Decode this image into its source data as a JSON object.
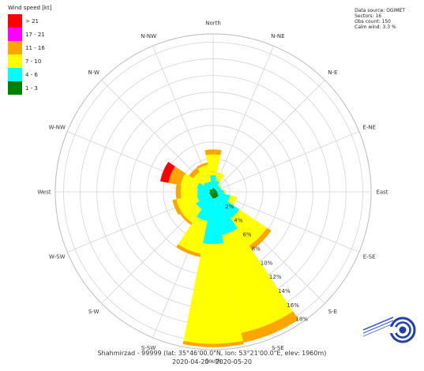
{
  "legend": {
    "title": "Wind speed [kt]",
    "items": [
      {
        "label": "> 21",
        "color": "#ff0000"
      },
      {
        "label": "17 - 21",
        "color": "#ff00ff"
      },
      {
        "label": "11 - 16",
        "color": "#ffa500"
      },
      {
        "label": "7 - 10",
        "color": "#ffff00"
      },
      {
        "label": "4 - 6",
        "color": "#00ffff"
      },
      {
        "label": "1 - 3",
        "color": "#008000"
      }
    ]
  },
  "info": {
    "lines": [
      "Data source: OGIMET",
      "Sectors: 16",
      "Obs count: 150",
      "Calm wind: 3.3 %"
    ]
  },
  "footer": {
    "station": "Shahmirzad - 99999 (lat: 35°46'00.0\"N, lon: 53°21'00.0\"E, elev: 1960m)",
    "period": "2020-04-20 - 2020-05-20"
  },
  "chart_data": {
    "type": "wind-rose",
    "directions": [
      "North",
      "N-NE",
      "N-E",
      "E-NE",
      "East",
      "E-SE",
      "S-E",
      "S-SE",
      "South",
      "S-SW",
      "S-W",
      "W-SW",
      "West",
      "W-NW",
      "N-W",
      "N-NW"
    ],
    "bins": [
      "1 - 3",
      "4 - 6",
      "7 - 10",
      "11 - 16",
      "17 - 21",
      "> 21"
    ],
    "bin_colors": [
      "#008000",
      "#00ffff",
      "#ffff00",
      "#ffa500",
      "#ff00ff",
      "#ff0000"
    ],
    "values_percent": [
      [
        0.5,
        1.5,
        2.5,
        0.6,
        0,
        0
      ],
      [
        0.4,
        1.0,
        1.0,
        0,
        0,
        0
      ],
      [
        0.4,
        0.6,
        0.2,
        0,
        0,
        0
      ],
      [
        0.4,
        0.6,
        0,
        0,
        0,
        0
      ],
      [
        0.5,
        0.8,
        0.2,
        0,
        0,
        0
      ],
      [
        0.6,
        1.5,
        0.8,
        0,
        0,
        0
      ],
      [
        0.8,
        3.0,
        4.0,
        0.6,
        0,
        0
      ],
      [
        0.8,
        4.5,
        12.0,
        1.2,
        0,
        0
      ],
      [
        0.8,
        5.5,
        12.0,
        0.4,
        0,
        0
      ],
      [
        0.6,
        3.0,
        4.0,
        0.4,
        0,
        0
      ],
      [
        0.5,
        2.0,
        2.0,
        0.3,
        0,
        0
      ],
      [
        0.5,
        1.5,
        2.5,
        0.5,
        0,
        0
      ],
      [
        0.4,
        1.5,
        2.0,
        0.6,
        0,
        0
      ],
      [
        0.5,
        1.5,
        2.0,
        1.5,
        0,
        1.0
      ],
      [
        0.4,
        1.0,
        1.5,
        0.6,
        0,
        0
      ],
      [
        0.3,
        1.0,
        2.0,
        0.3,
        0,
        0
      ]
    ],
    "radial_ticks": [
      2,
      4,
      6,
      8,
      10,
      12,
      14,
      16,
      18
    ],
    "radial_tick_labels": [
      "2%",
      "4%",
      "6%",
      "8%",
      "10%",
      "12%",
      "14%",
      "16%",
      "18%"
    ],
    "rmax": 19
  }
}
